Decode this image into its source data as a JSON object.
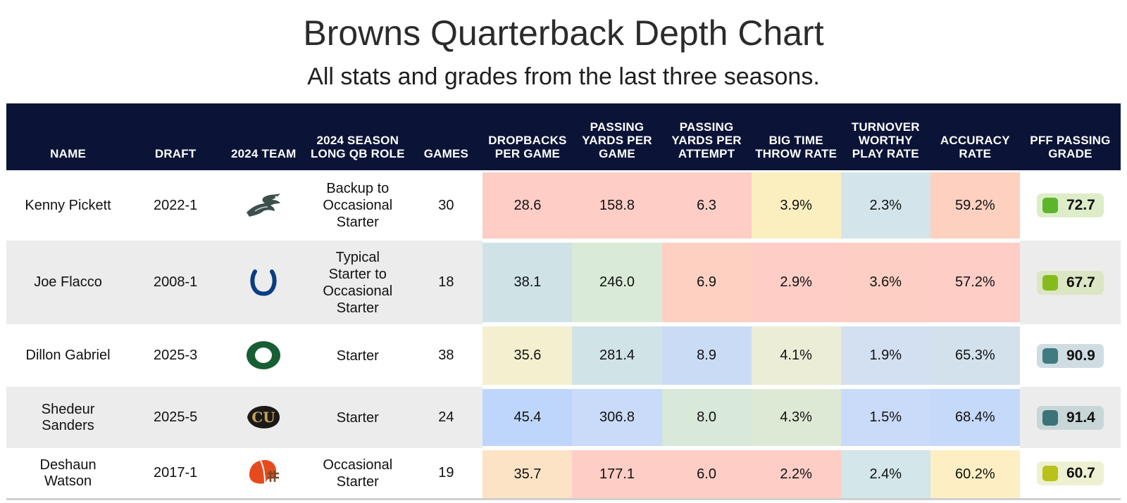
{
  "chart_data": {
    "type": "table",
    "title": "Browns Quarterback Depth Chart",
    "subtitle": "All stats and grades from the last three seasons.",
    "columns": [
      "NAME",
      "DRAFT",
      "2024 TEAM",
      "2024 SEASON LONG QB ROLE",
      "GAMES",
      "DROPBACKS PER GAME",
      "PASSING YARDS PER GAME",
      "PASSING YARDS PER ATTEMPT",
      "BIG TIME THROW RATE",
      "TURNOVER WORTHY PLAY RATE",
      "ACCURACY RATE",
      "PFF PASSING GRADE"
    ],
    "rows": [
      {
        "name": "Kenny Pickett",
        "draft": "2022-1",
        "team_icon": "eagles-logo-icon",
        "role": "Backup to Occasional Starter",
        "games": "30",
        "stats": [
          "28.6",
          "158.8",
          "6.3",
          "3.9%",
          "2.3%",
          "59.2%"
        ],
        "stat_colors": [
          "#fdcdc6",
          "#fdcdc6",
          "#fdcdc6",
          "#fbefc0",
          "#d3e4ea",
          "#fdd0c0"
        ],
        "grade": "72.7",
        "grade_color": "#5cb52a",
        "grade_bg": "#ddedc8"
      },
      {
        "name": "Joe Flacco",
        "draft": "2008-1",
        "team_icon": "colts-logo-icon",
        "role": "Typical Starter to Occasional Starter",
        "games": "18",
        "stats": [
          "38.1",
          "246.0",
          "6.9",
          "2.9%",
          "3.6%",
          "57.2%"
        ],
        "stat_colors": [
          "#cfe3e7",
          "#d9ebd8",
          "#fdd0c2",
          "#fdcdc6",
          "#fdcfc4",
          "#fdcdc6"
        ],
        "grade": "67.7",
        "grade_color": "#86bb1e",
        "grade_bg": "#dbe6c5"
      },
      {
        "name": "Dillon Gabriel",
        "draft": "2025-3",
        "team_icon": "oregon-logo-icon",
        "role": "Starter",
        "games": "38",
        "stats": [
          "35.6",
          "281.4",
          "8.9",
          "4.1%",
          "1.9%",
          "65.3%"
        ],
        "stat_colors": [
          "#f4efcf",
          "#d0e3e7",
          "#cadcf5",
          "#ecedd6",
          "#d3e0f1",
          "#d2e1ec"
        ],
        "grade": "90.9",
        "grade_color": "#3f7b80",
        "grade_bg": "#cfdde2"
      },
      {
        "name": "Shedeur Sanders",
        "draft": "2025-5",
        "team_icon": "colorado-logo-icon",
        "role": "Starter",
        "games": "24",
        "stats": [
          "45.4",
          "306.8",
          "8.0",
          "4.3%",
          "1.5%",
          "68.4%"
        ],
        "stat_colors": [
          "#bed6fb",
          "#c9dbf8",
          "#d8e8d9",
          "#dde9d5",
          "#c9dbf8",
          "#c5d9fa"
        ],
        "grade": "91.4",
        "grade_color": "#3a7378",
        "grade_bg": "#c9d6d7"
      },
      {
        "name": "Deshaun Watson",
        "draft": "2017-1",
        "team_icon": "browns-helmet-icon",
        "role": "Occasional Starter",
        "games": "19",
        "stats": [
          "35.7",
          "177.1",
          "6.0",
          "2.2%",
          "2.4%",
          "60.2%"
        ],
        "stat_colors": [
          "#fce3c6",
          "#fdcdc6",
          "#fdcdc6",
          "#fdcdc6",
          "#d3e6e9",
          "#fdefc3"
        ],
        "grade": "60.7",
        "grade_color": "#b9c21a",
        "grade_bg": "#edf1d2"
      }
    ]
  }
}
